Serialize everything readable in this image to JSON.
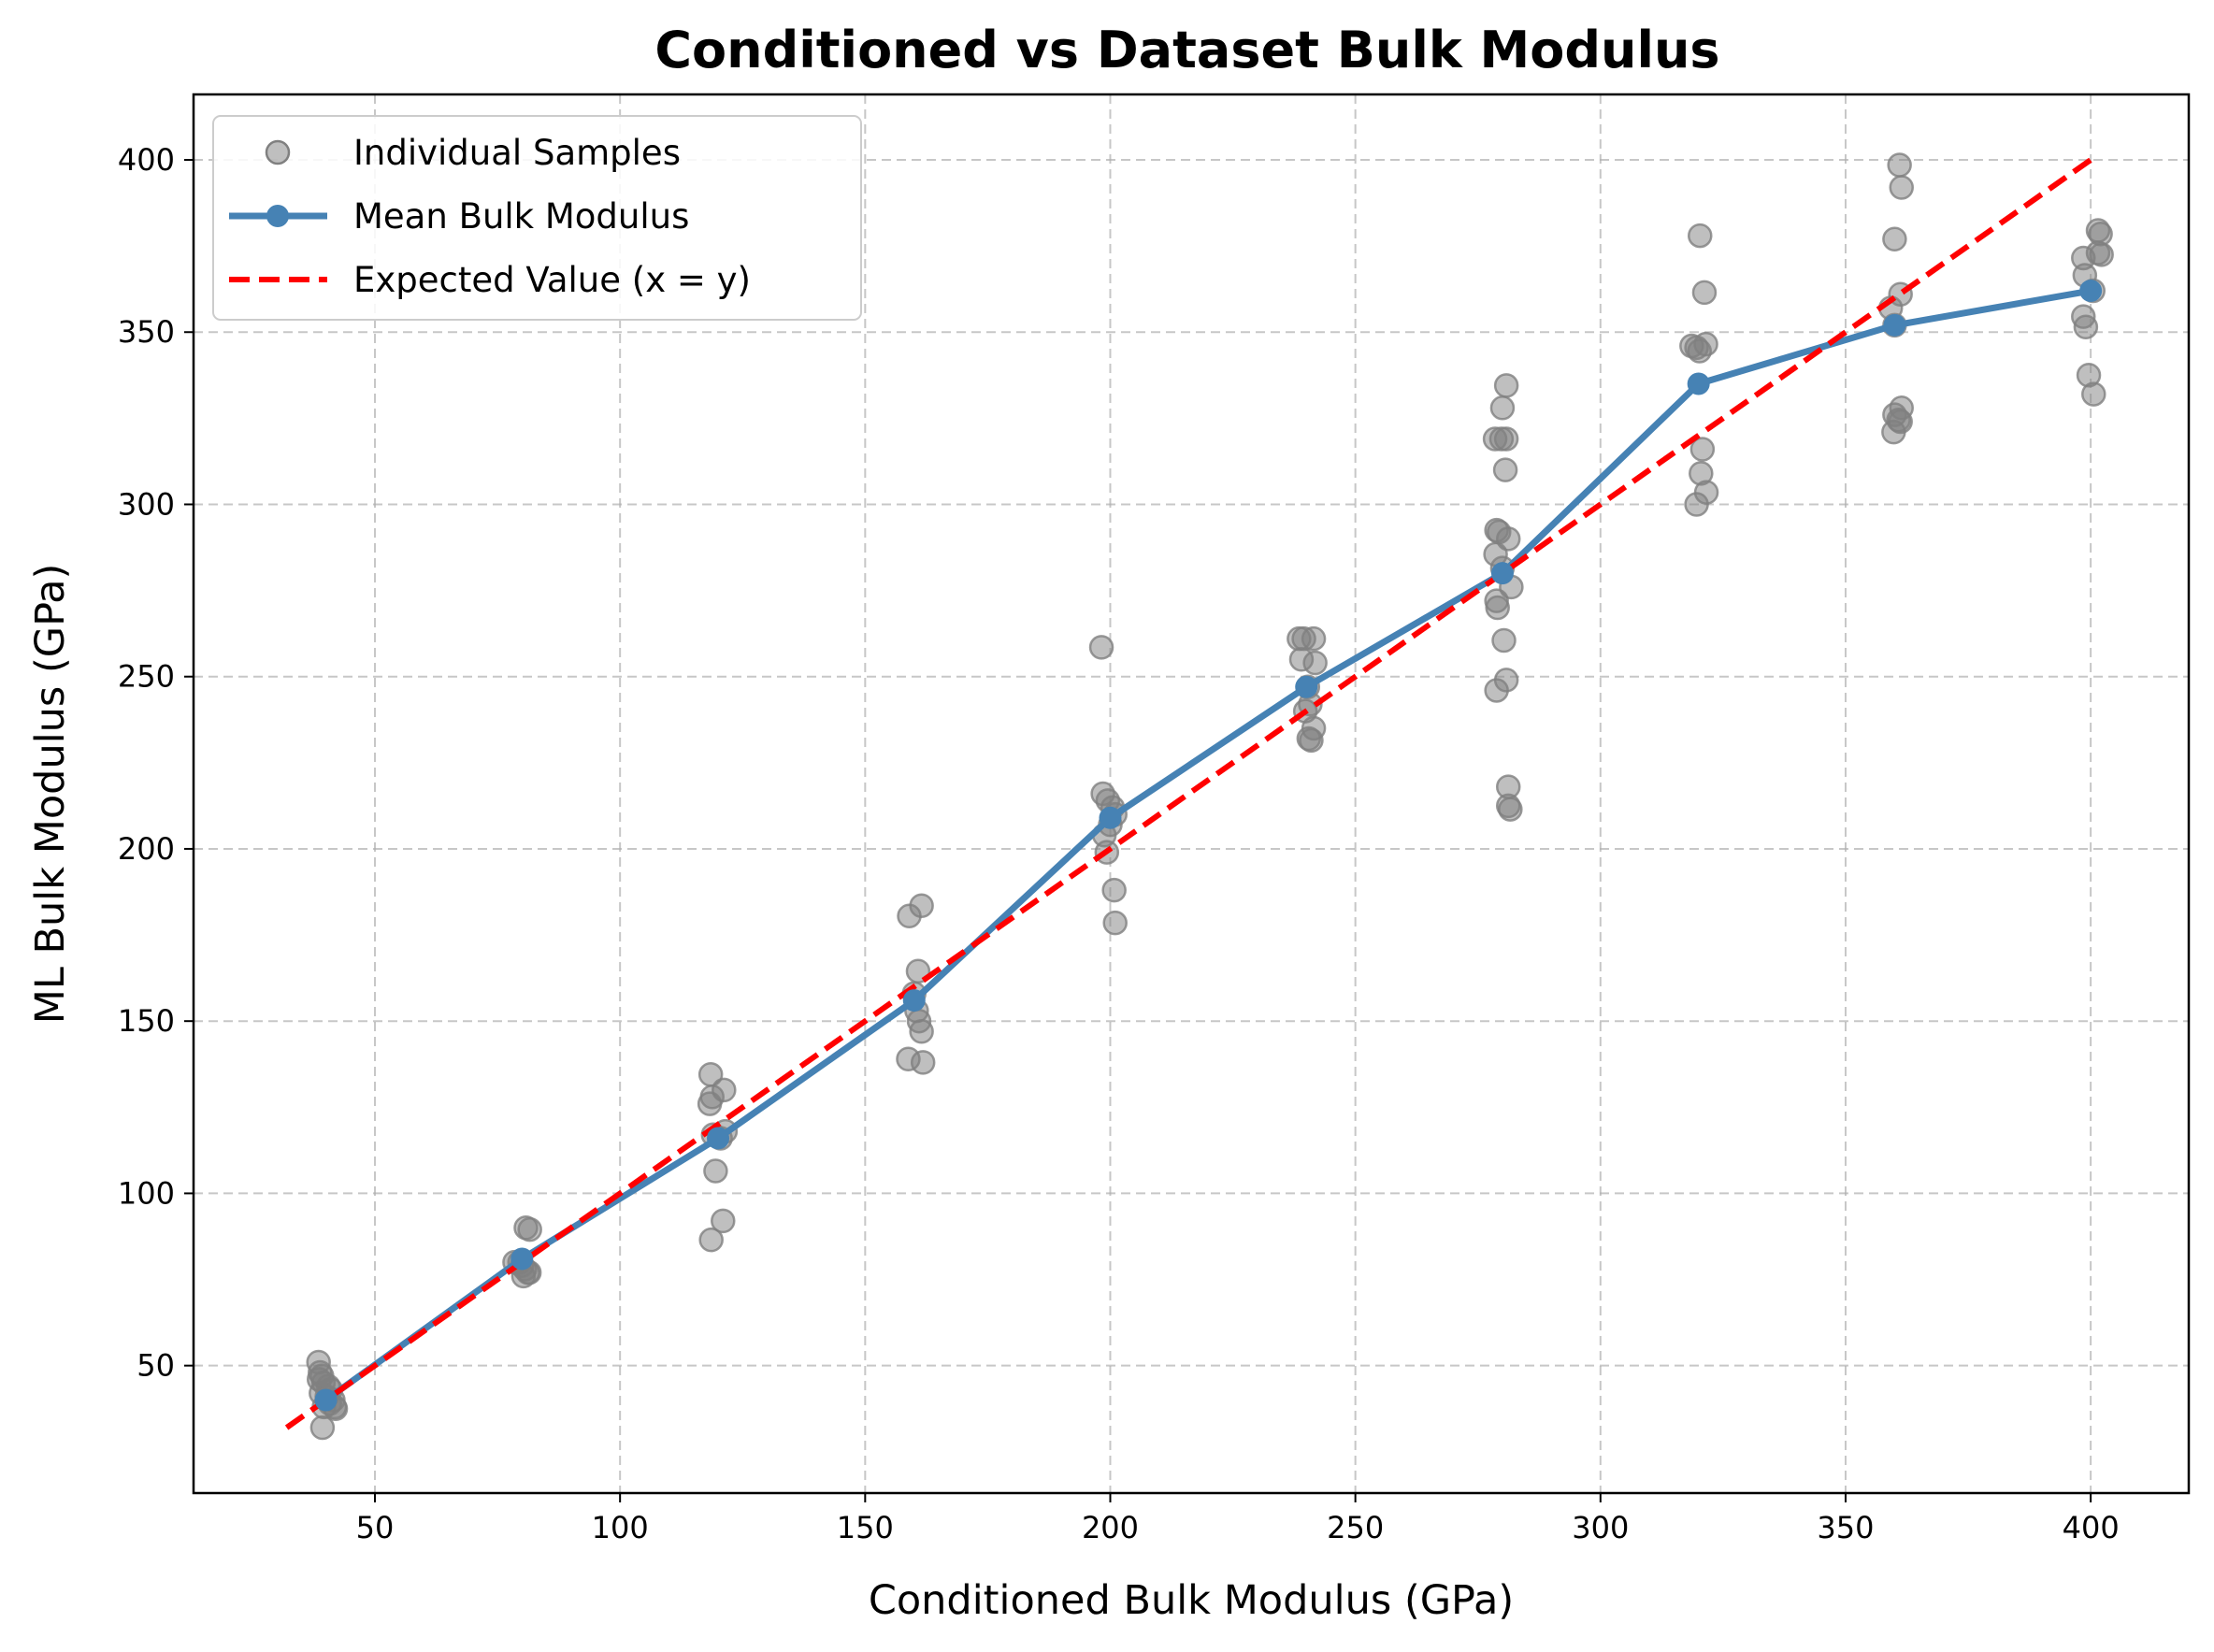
{
  "chart_data": {
    "type": "scatter",
    "title": "Conditioned vs Dataset Bulk Modulus",
    "xlabel": "Conditioned Bulk Modulus (GPa)",
    "ylabel": "ML Bulk Modulus (GPa)",
    "xlim": [
      13,
      420
    ],
    "ylim": [
      13,
      419
    ],
    "xticks": [
      50,
      100,
      150,
      200,
      250,
      300,
      350,
      400
    ],
    "yticks": [
      50,
      100,
      150,
      200,
      250,
      300,
      350,
      400
    ],
    "grid": true,
    "legend_position": "upper-left",
    "colors": {
      "samples": "#808080",
      "mean": "#4682b4",
      "expected": "#ff0000"
    },
    "series": [
      {
        "name": "Individual Samples",
        "kind": "scatter",
        "points": [
          [
            38.5,
            51
          ],
          [
            38.8,
            48
          ],
          [
            39.2,
            47
          ],
          [
            38.6,
            46
          ],
          [
            39.5,
            45
          ],
          [
            40.5,
            44
          ],
          [
            41,
            43
          ],
          [
            39,
            42
          ],
          [
            40.2,
            41
          ],
          [
            41.5,
            40
          ],
          [
            40.8,
            39
          ],
          [
            39.6,
            38
          ],
          [
            41.8,
            38
          ],
          [
            42,
            37.5
          ],
          [
            39.3,
            32
          ],
          [
            78.5,
            80
          ],
          [
            79.5,
            80
          ],
          [
            80,
            79
          ],
          [
            80.6,
            78
          ],
          [
            80.3,
            76
          ],
          [
            81.2,
            77
          ],
          [
            81.5,
            77
          ],
          [
            80.8,
            90
          ],
          [
            81.6,
            89.5
          ],
          [
            118.5,
            134.5
          ],
          [
            118.8,
            128
          ],
          [
            118.3,
            126
          ],
          [
            121.2,
            130
          ],
          [
            121.5,
            118
          ],
          [
            119,
            117
          ],
          [
            120.5,
            116
          ],
          [
            119.5,
            106.5
          ],
          [
            121,
            92
          ],
          [
            118.6,
            86.5
          ],
          [
            159,
            180.5
          ],
          [
            161.5,
            183.5
          ],
          [
            160.8,
            164.5
          ],
          [
            160,
            158
          ],
          [
            160.5,
            153
          ],
          [
            161,
            150
          ],
          [
            161.5,
            147
          ],
          [
            158.8,
            139
          ],
          [
            161.8,
            138
          ],
          [
            198.2,
            258.5
          ],
          [
            198.5,
            216
          ],
          [
            199.5,
            214
          ],
          [
            200.5,
            212
          ],
          [
            201,
            210
          ],
          [
            200,
            207
          ],
          [
            198.8,
            204
          ],
          [
            199.3,
            199
          ],
          [
            200.8,
            188
          ],
          [
            201,
            178.5
          ],
          [
            238.5,
            261
          ],
          [
            239.5,
            261
          ],
          [
            241.5,
            261
          ],
          [
            239,
            255
          ],
          [
            241.8,
            254
          ],
          [
            240.3,
            247
          ],
          [
            240.8,
            242
          ],
          [
            239.8,
            240
          ],
          [
            241.5,
            235
          ],
          [
            240.5,
            232
          ],
          [
            241,
            231.5
          ],
          [
            280.8,
            334.5
          ],
          [
            280,
            328
          ],
          [
            278.5,
            319
          ],
          [
            279.8,
            319
          ],
          [
            280.8,
            319
          ],
          [
            280.6,
            310
          ],
          [
            278.8,
            292.5
          ],
          [
            279.3,
            292
          ],
          [
            281.2,
            290
          ],
          [
            278.6,
            285.5
          ],
          [
            280,
            281.5
          ],
          [
            281.8,
            276
          ],
          [
            278.8,
            272
          ],
          [
            279,
            270
          ],
          [
            280.3,
            260.5
          ],
          [
            280.8,
            249
          ],
          [
            278.8,
            246
          ],
          [
            281.2,
            218
          ],
          [
            281.2,
            212.5
          ],
          [
            281.6,
            211.5
          ],
          [
            320.3,
            378
          ],
          [
            321.2,
            361.5
          ],
          [
            318.6,
            346
          ],
          [
            319.6,
            345.5
          ],
          [
            321.5,
            346.5
          ],
          [
            320.2,
            344.5
          ],
          [
            320.8,
            316
          ],
          [
            320.5,
            309
          ],
          [
            321.6,
            303.5
          ],
          [
            319.6,
            300
          ],
          [
            361,
            398.5
          ],
          [
            361.4,
            392
          ],
          [
            360,
            377
          ],
          [
            361.2,
            361
          ],
          [
            359.2,
            357
          ],
          [
            360,
            352
          ],
          [
            361.4,
            328
          ],
          [
            360.8,
            324.5
          ],
          [
            360,
            326
          ],
          [
            361.2,
            324
          ],
          [
            359.8,
            321
          ],
          [
            401.5,
            379.5
          ],
          [
            402,
            378.5
          ],
          [
            398.5,
            371.5
          ],
          [
            401.5,
            373
          ],
          [
            402.2,
            372.5
          ],
          [
            398.8,
            366.5
          ],
          [
            400.5,
            362
          ],
          [
            398.5,
            354.5
          ],
          [
            399,
            351.5
          ],
          [
            399.6,
            337.5
          ],
          [
            400.6,
            332
          ]
        ]
      },
      {
        "name": "Mean Bulk Modulus",
        "kind": "line",
        "x": [
          40,
          80,
          120,
          160,
          200,
          240,
          280,
          320,
          360,
          400
        ],
        "y": [
          40,
          81,
          116,
          156,
          209,
          247,
          280,
          335,
          352,
          362
        ]
      },
      {
        "name": "Expected Value (x = y)",
        "kind": "line-dashed",
        "x": [
          32,
          400
        ],
        "y": [
          32,
          400
        ]
      }
    ]
  }
}
